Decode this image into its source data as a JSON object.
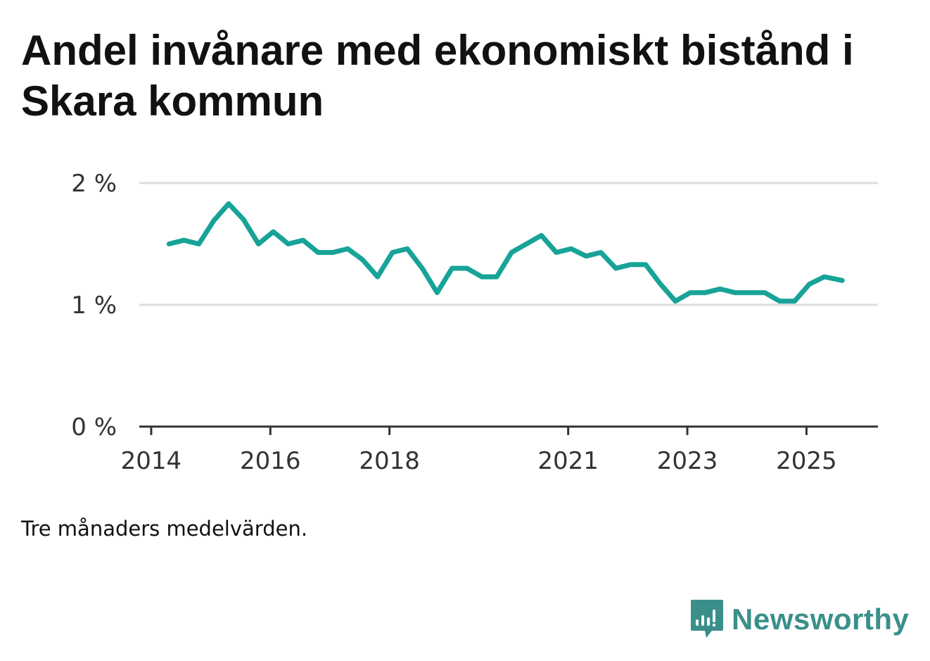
{
  "title": "Andel invånare med ekonomiskt bistånd i Skara kommun",
  "note": "Tre månaders medelvärden.",
  "brand": {
    "name": "Newsworthy",
    "icon": "newsworthy-logo-icon",
    "color": "#3a8f8a"
  },
  "colors": {
    "line": "#17a398",
    "grid": "#dddddd",
    "axis": "#333333"
  },
  "chart_data": {
    "type": "line",
    "title": "Andel invånare med ekonomiskt bistånd i Skara kommun",
    "xlabel": "",
    "ylabel": "",
    "ylim": [
      0,
      2
    ],
    "xlim": [
      2013.8,
      2026.2
    ],
    "grid": true,
    "y_ticks": [
      {
        "value": 0,
        "label": "0 %"
      },
      {
        "value": 1,
        "label": "1 %"
      },
      {
        "value": 2,
        "label": "2 %"
      }
    ],
    "x_ticks": [
      {
        "value": 2014,
        "label": "2014"
      },
      {
        "value": 2016,
        "label": "2016"
      },
      {
        "value": 2018,
        "label": "2018"
      },
      {
        "value": 2021,
        "label": "2021"
      },
      {
        "value": 2023,
        "label": "2023"
      },
      {
        "value": 2025,
        "label": "2025"
      }
    ],
    "series": [
      {
        "name": "Andel invånare med ekonomiskt bistånd",
        "x": [
          2014.3,
          2014.55,
          2014.8,
          2015.05,
          2015.3,
          2015.55,
          2015.8,
          2016.05,
          2016.3,
          2016.55,
          2016.8,
          2017.05,
          2017.3,
          2017.55,
          2017.8,
          2018.05,
          2018.3,
          2018.55,
          2018.8,
          2019.05,
          2019.3,
          2019.55,
          2019.8,
          2020.05,
          2020.3,
          2020.55,
          2020.8,
          2021.05,
          2021.3,
          2021.55,
          2021.8,
          2022.05,
          2022.3,
          2022.55,
          2022.8,
          2023.05,
          2023.3,
          2023.55,
          2023.8,
          2024.05,
          2024.3,
          2024.55,
          2024.8,
          2025.05,
          2025.3,
          2025.6
        ],
        "values": [
          1.5,
          1.53,
          1.5,
          1.69,
          1.83,
          1.7,
          1.5,
          1.6,
          1.5,
          1.53,
          1.43,
          1.43,
          1.46,
          1.37,
          1.23,
          1.43,
          1.46,
          1.3,
          1.1,
          1.3,
          1.3,
          1.23,
          1.23,
          1.43,
          1.5,
          1.57,
          1.43,
          1.46,
          1.4,
          1.43,
          1.3,
          1.33,
          1.33,
          1.17,
          1.03,
          1.1,
          1.1,
          1.13,
          1.1,
          1.1,
          1.1,
          1.03,
          1.03,
          1.17,
          1.23,
          1.2
        ]
      }
    ]
  }
}
